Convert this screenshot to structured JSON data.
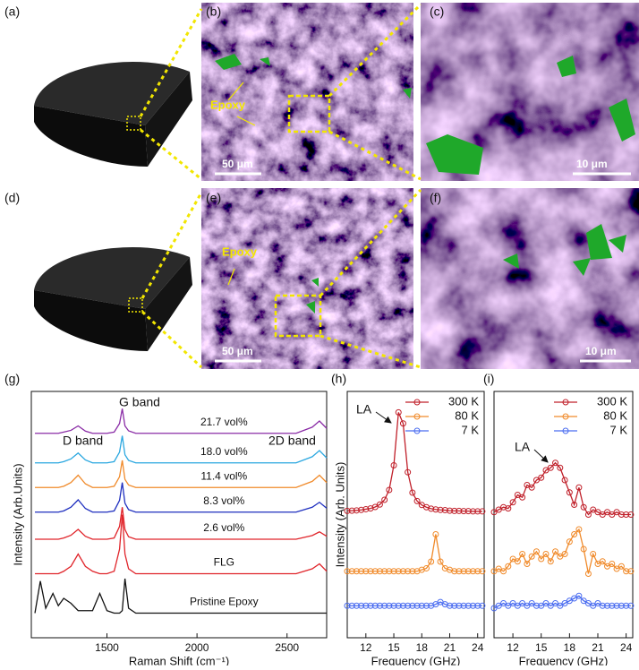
{
  "panels": [
    {
      "label": "(a)"
    },
    {
      "label": "(b)",
      "annotation": "Epoxy",
      "scale_bar": "50 μm"
    },
    {
      "label": "(c)",
      "scale_bar": "10 μm"
    },
    {
      "label": "(d)"
    },
    {
      "label": "(e)",
      "annotation": "Epoxy",
      "scale_bar": "50 μm"
    },
    {
      "label": "(f)",
      "scale_bar": "10 μm"
    }
  ],
  "chart_data": [
    {
      "type": "line",
      "panel_label": "(g)",
      "xlabel": "Raman Shift (cm⁻¹)",
      "ylabel": "Intensity (Arb.Units)",
      "x": [
        1100,
        1130,
        1160,
        1200,
        1230,
        1260,
        1300,
        1340,
        1380,
        1420,
        1460,
        1500,
        1540,
        1570,
        1585,
        1600,
        1620,
        1660,
        1800,
        2000,
        2200,
        2400,
        2550,
        2640,
        2680,
        2720
      ],
      "xlim": [
        1080,
        2720
      ],
      "xticks": [
        1500,
        2000,
        2500
      ],
      "ylim": [
        0,
        10
      ],
      "annotations": [
        "D band",
        "G band",
        "2D band"
      ],
      "series": [
        {
          "name": "21.7 vol%",
          "color": "#8a2ca6",
          "values": [
            8.3,
            8.3,
            8.3,
            8.3,
            8.3,
            8.35,
            8.42,
            8.6,
            8.39,
            8.3,
            8.3,
            8.3,
            8.35,
            8.7,
            9.3,
            8.6,
            8.4,
            8.3,
            8.3,
            8.3,
            8.3,
            8.3,
            8.3,
            8.55,
            8.8,
            8.5
          ]
        },
        {
          "name": "18.0 vol%",
          "color": "#2aa7e0",
          "values": [
            7.1,
            7.1,
            7.1,
            7.1,
            7.1,
            7.15,
            7.26,
            7.5,
            7.22,
            7.1,
            7.1,
            7.1,
            7.15,
            7.54,
            8.2,
            7.43,
            7.2,
            7.1,
            7.1,
            7.1,
            7.1,
            7.1,
            7.1,
            7.35,
            7.6,
            7.3
          ]
        },
        {
          "name": "11.4 vol%",
          "color": "#f08a2a",
          "values": [
            6.1,
            6.1,
            6.1,
            6.1,
            6.1,
            6.15,
            6.3,
            6.6,
            6.25,
            6.1,
            6.1,
            6.1,
            6.15,
            6.54,
            7.2,
            6.43,
            6.2,
            6.1,
            6.1,
            6.1,
            6.1,
            6.1,
            6.1,
            6.35,
            6.6,
            6.3
          ]
        },
        {
          "name": "8.3 vol%",
          "color": "#1f2fbf",
          "values": [
            5.1,
            5.1,
            5.1,
            5.1,
            5.1,
            5.15,
            5.3,
            5.6,
            5.25,
            5.1,
            5.1,
            5.1,
            5.15,
            5.58,
            6.3,
            5.46,
            5.2,
            5.1,
            5.1,
            5.1,
            5.1,
            5.1,
            5.1,
            5.3,
            5.5,
            5.26
          ]
        },
        {
          "name": "2.6 vol%",
          "color": "#e0242a",
          "values": [
            4,
            4,
            4,
            4,
            4,
            4.05,
            4.16,
            4.4,
            4.12,
            4,
            4,
            4,
            4.05,
            4.52,
            5.3,
            4.39,
            4.1,
            4,
            4,
            4,
            4,
            4,
            4,
            4.15,
            4.3,
            4.12
          ]
        },
        {
          "name": "FLG",
          "color": "#e0242a",
          "values": [
            2.6,
            2.6,
            2.6,
            2.6,
            2.6,
            2.7,
            2.9,
            3.4,
            2.9,
            2.7,
            2.6,
            2.6,
            2.7,
            3.6,
            5.0,
            3.4,
            2.8,
            2.6,
            2.6,
            2.6,
            2.6,
            2.6,
            2.6,
            2.8,
            3.0,
            2.7
          ]
        },
        {
          "name": "Pristine Epoxy",
          "color": "#111111",
          "values": [
            1.0,
            2.3,
            1.2,
            1.8,
            1.3,
            1.6,
            1.4,
            1.1,
            1.1,
            1.1,
            1.8,
            1.1,
            1.0,
            1.0,
            1.1,
            2.4,
            1.2,
            1.0,
            1.0,
            1.0,
            1.0,
            1.0,
            1.0,
            1.0,
            1.0,
            1.0
          ]
        }
      ]
    },
    {
      "type": "line",
      "markers": true,
      "panel_label": "(h)",
      "xlabel": "Frequency (GHz)",
      "ylabel": "Intensity (Arb. Units)",
      "x": [
        10,
        10.5,
        11,
        11.5,
        12,
        12.5,
        13,
        13.5,
        14,
        14.5,
        15,
        15.5,
        16,
        16.5,
        17,
        17.5,
        18,
        18.5,
        19,
        19.5,
        20,
        20.5,
        21,
        21.5,
        22,
        22.5,
        23,
        23.5,
        24,
        24.5
      ],
      "xlim": [
        10,
        24.7
      ],
      "xticks": [
        12,
        15,
        18,
        21,
        24
      ],
      "ylim": [
        0,
        10
      ],
      "legend": "upper right",
      "annotations": [
        "LA"
      ],
      "series": [
        {
          "name": "300 K",
          "color": "#c0202a",
          "values": [
            5.15,
            5.16,
            5.17,
            5.19,
            5.22,
            5.25,
            5.31,
            5.41,
            5.6,
            6.0,
            7.0,
            9.15,
            8.7,
            6.72,
            5.89,
            5.55,
            5.39,
            5.3,
            5.24,
            5.21,
            5.19,
            5.18,
            5.16,
            5.15,
            5.15,
            5.14,
            5.14,
            5.13,
            5.13,
            5.13
          ]
        },
        {
          "name": "80 K",
          "color": "#f08a2a",
          "values": [
            2.7,
            2.7,
            2.7,
            2.7,
            2.7,
            2.7,
            2.7,
            2.7,
            2.7,
            2.7,
            2.7,
            2.7,
            2.7,
            2.7,
            2.7,
            2.7,
            2.76,
            2.82,
            3.09,
            4.2,
            3.09,
            2.82,
            2.76,
            2.7,
            2.7,
            2.7,
            2.7,
            2.7,
            2.7,
            2.7
          ]
        },
        {
          "name": "7 K",
          "color": "#4a6cf0",
          "values": [
            1.3,
            1.3,
            1.3,
            1.3,
            1.3,
            1.3,
            1.3,
            1.3,
            1.3,
            1.3,
            1.3,
            1.3,
            1.3,
            1.3,
            1.3,
            1.3,
            1.3,
            1.3,
            1.3,
            1.36,
            1.45,
            1.36,
            1.3,
            1.3,
            1.3,
            1.3,
            1.3,
            1.3,
            1.3,
            1.3
          ]
        }
      ]
    },
    {
      "type": "line",
      "markers": true,
      "panel_label": "(i)",
      "xlabel": "Frequency (GHz)",
      "x": [
        10,
        10.5,
        11,
        11.5,
        12,
        12.5,
        13,
        13.5,
        14,
        14.5,
        15,
        15.5,
        16,
        16.5,
        17,
        17.5,
        18,
        18.5,
        19,
        19.5,
        20,
        20.5,
        21,
        21.5,
        22,
        22.5,
        23,
        23.5,
        24,
        24.5
      ],
      "xlim": [
        10,
        24.7
      ],
      "xticks": [
        12,
        15,
        18,
        21,
        24
      ],
      "ylim": [
        0,
        10
      ],
      "legend": "upper right",
      "annotations": [
        "LA"
      ],
      "series": [
        {
          "name": "300 K",
          "color": "#c0202a",
          "values": [
            5.1,
            5.2,
            5.3,
            5.25,
            5.5,
            5.8,
            5.7,
            6.2,
            6.1,
            6.4,
            6.5,
            6.8,
            6.9,
            7.1,
            6.9,
            6.4,
            5.9,
            5.4,
            6.1,
            5.3,
            5.0,
            5.2,
            5.1,
            5.0,
            5.1,
            5.0,
            5.1,
            5.0,
            5.0,
            5.0
          ]
        },
        {
          "name": "80 K",
          "color": "#f08a2a",
          "values": [
            2.7,
            2.8,
            2.7,
            2.9,
            3.2,
            3.1,
            3.4,
            3.0,
            3.3,
            3.5,
            3.2,
            3.4,
            3.1,
            3.5,
            3.3,
            3.4,
            3.9,
            4.2,
            4.4,
            3.6,
            2.6,
            3.4,
            3.0,
            3.1,
            2.9,
            3.0,
            2.8,
            2.9,
            2.7,
            2.7
          ]
        },
        {
          "name": "7 K",
          "color": "#4a6cf0",
          "values": [
            1.2,
            1.3,
            1.4,
            1.3,
            1.4,
            1.3,
            1.4,
            1.3,
            1.4,
            1.3,
            1.3,
            1.4,
            1.3,
            1.4,
            1.3,
            1.4,
            1.5,
            1.6,
            1.7,
            1.5,
            1.4,
            1.3,
            1.4,
            1.3,
            1.3,
            1.3,
            1.3,
            1.3,
            1.3,
            1.3
          ]
        }
      ]
    }
  ]
}
